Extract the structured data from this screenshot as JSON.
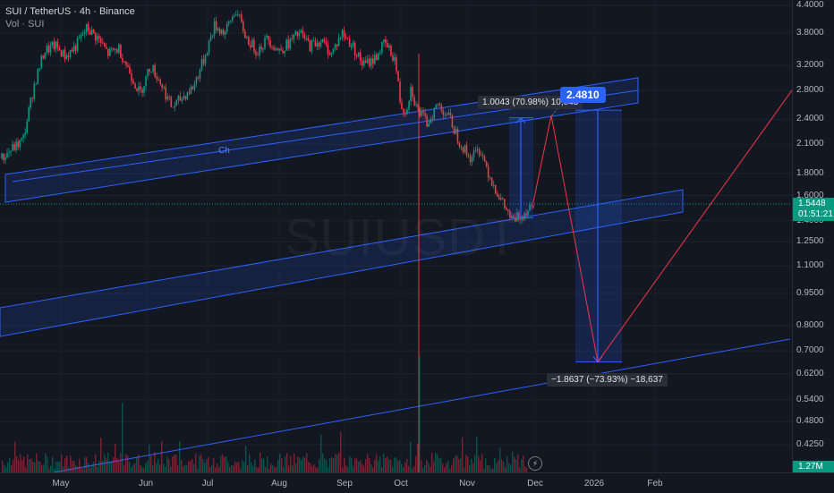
{
  "header": {
    "symbol_line": "SUI / TetherUS · 4h · Binance",
    "volume_line": "Vol · SUI",
    "watermark": "SUIUSDT"
  },
  "price_tag": {
    "price": "1.5448",
    "countdown": "01:51:21"
  },
  "volume_tag": "1.27M",
  "annotations": {
    "rise": "1.0043 (70.98%) 10,043",
    "target": "2.4810",
    "drop": "−1.8637 (−73.93%) −18,637",
    "channel_label": "Ch"
  },
  "colors": {
    "up": "#089981",
    "down": "#f23645",
    "tool": "#2962ff",
    "projection": "#f23645"
  },
  "chart_data": {
    "type": "candlestick",
    "title": "SUI / TetherUS · 4h · Binance",
    "y_scale": "log",
    "y_ticks": [
      "4.4000",
      "3.8000",
      "3.2000",
      "2.8000",
      "2.4000",
      "2.1000",
      "1.8000",
      "1.6000",
      "1.4000",
      "1.2500",
      "1.1000",
      "0.9500",
      "0.8000",
      "0.7000",
      "0.6200",
      "0.5400",
      "0.4800",
      "0.4250"
    ],
    "x_ticks": [
      "May",
      "Jun",
      "Jul",
      "Aug",
      "Sep",
      "Oct",
      "Nov",
      "Dec",
      "2026",
      "Feb"
    ],
    "ylim": [
      0.39,
      4.45
    ],
    "last_price": 1.5448,
    "price_path": [
      {
        "t": 0.0,
        "p": 1.95
      },
      {
        "t": 0.02,
        "p": 2.05
      },
      {
        "t": 0.04,
        "p": 2.15
      },
      {
        "t": 0.06,
        "p": 2.85
      },
      {
        "t": 0.08,
        "p": 3.45
      },
      {
        "t": 0.1,
        "p": 3.55
      },
      {
        "t": 0.12,
        "p": 3.35
      },
      {
        "t": 0.14,
        "p": 3.55
      },
      {
        "t": 0.16,
        "p": 3.9
      },
      {
        "t": 0.18,
        "p": 3.7
      },
      {
        "t": 0.2,
        "p": 3.4
      },
      {
        "t": 0.22,
        "p": 3.5
      },
      {
        "t": 0.24,
        "p": 3.1
      },
      {
        "t": 0.26,
        "p": 2.75
      },
      {
        "t": 0.28,
        "p": 3.2
      },
      {
        "t": 0.3,
        "p": 2.9
      },
      {
        "t": 0.32,
        "p": 2.55
      },
      {
        "t": 0.34,
        "p": 2.7
      },
      {
        "t": 0.36,
        "p": 2.85
      },
      {
        "t": 0.38,
        "p": 3.3
      },
      {
        "t": 0.4,
        "p": 3.95
      },
      {
        "t": 0.42,
        "p": 3.8
      },
      {
        "t": 0.44,
        "p": 4.3
      },
      {
        "t": 0.46,
        "p": 3.7
      },
      {
        "t": 0.48,
        "p": 3.45
      },
      {
        "t": 0.5,
        "p": 3.7
      },
      {
        "t": 0.52,
        "p": 3.45
      },
      {
        "t": 0.54,
        "p": 3.6
      },
      {
        "t": 0.56,
        "p": 3.8
      },
      {
        "t": 0.58,
        "p": 3.55
      },
      {
        "t": 0.6,
        "p": 3.65
      },
      {
        "t": 0.62,
        "p": 3.4
      },
      {
        "t": 0.64,
        "p": 3.8
      },
      {
        "t": 0.66,
        "p": 3.55
      },
      {
        "t": 0.68,
        "p": 3.2
      },
      {
        "t": 0.7,
        "p": 3.3
      },
      {
        "t": 0.72,
        "p": 3.6
      },
      {
        "t": 0.74,
        "p": 3.3
      },
      {
        "t": 0.75,
        "p": 2.6
      },
      {
        "t": 0.76,
        "p": 2.5
      },
      {
        "t": 0.77,
        "p": 2.85
      },
      {
        "t": 0.78,
        "p": 2.55
      },
      {
        "t": 0.8,
        "p": 2.35
      },
      {
        "t": 0.82,
        "p": 2.6
      },
      {
        "t": 0.84,
        "p": 2.45
      },
      {
        "t": 0.86,
        "p": 2.15
      },
      {
        "t": 0.88,
        "p": 1.95
      },
      {
        "t": 0.9,
        "p": 2.05
      },
      {
        "t": 0.92,
        "p": 1.75
      },
      {
        "t": 0.94,
        "p": 1.55
      },
      {
        "t": 0.96,
        "p": 1.4
      },
      {
        "t": 0.98,
        "p": 1.45
      },
      {
        "t": 1.0,
        "p": 1.5448
      }
    ],
    "projection": [
      {
        "label": "start",
        "p": 1.5448
      },
      {
        "label": "peak",
        "p": 2.45
      },
      {
        "label": "bottom",
        "p": 0.66
      },
      {
        "label": "end",
        "p": 2.8
      }
    ],
    "measures": [
      {
        "from": 1.42,
        "to": 2.42,
        "text": "1.0043 (70.98%) 10,043"
      },
      {
        "from": 2.52,
        "to": 0.66,
        "text": "−1.8637 (−73.93%) −18,637"
      }
    ]
  }
}
